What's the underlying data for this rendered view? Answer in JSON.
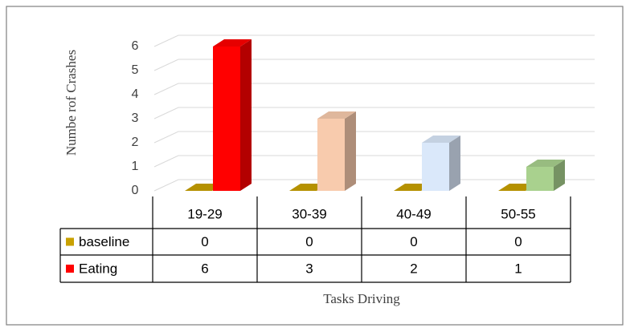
{
  "chart_data": {
    "type": "bar3d",
    "y_label": "Numbe rof  Crashes",
    "x_label": "Tasks Driving",
    "categories": [
      "19-29",
      "30-39",
      "40-49",
      "50-55"
    ],
    "series": [
      {
        "name": "baseline",
        "color": "#c9a100",
        "values": [
          0,
          0,
          0,
          0
        ]
      },
      {
        "name": "Eating",
        "color": "#ff0000",
        "point_colors": [
          "#ff0000",
          "#f8cbad",
          "#dae8fa",
          "#a9d18e"
        ],
        "values": [
          6,
          3,
          2,
          1
        ]
      }
    ],
    "ylim": [
      0,
      6
    ],
    "yticks": [
      0,
      1,
      2,
      3,
      4,
      5,
      6
    ],
    "grid": true,
    "legend": "table"
  }
}
